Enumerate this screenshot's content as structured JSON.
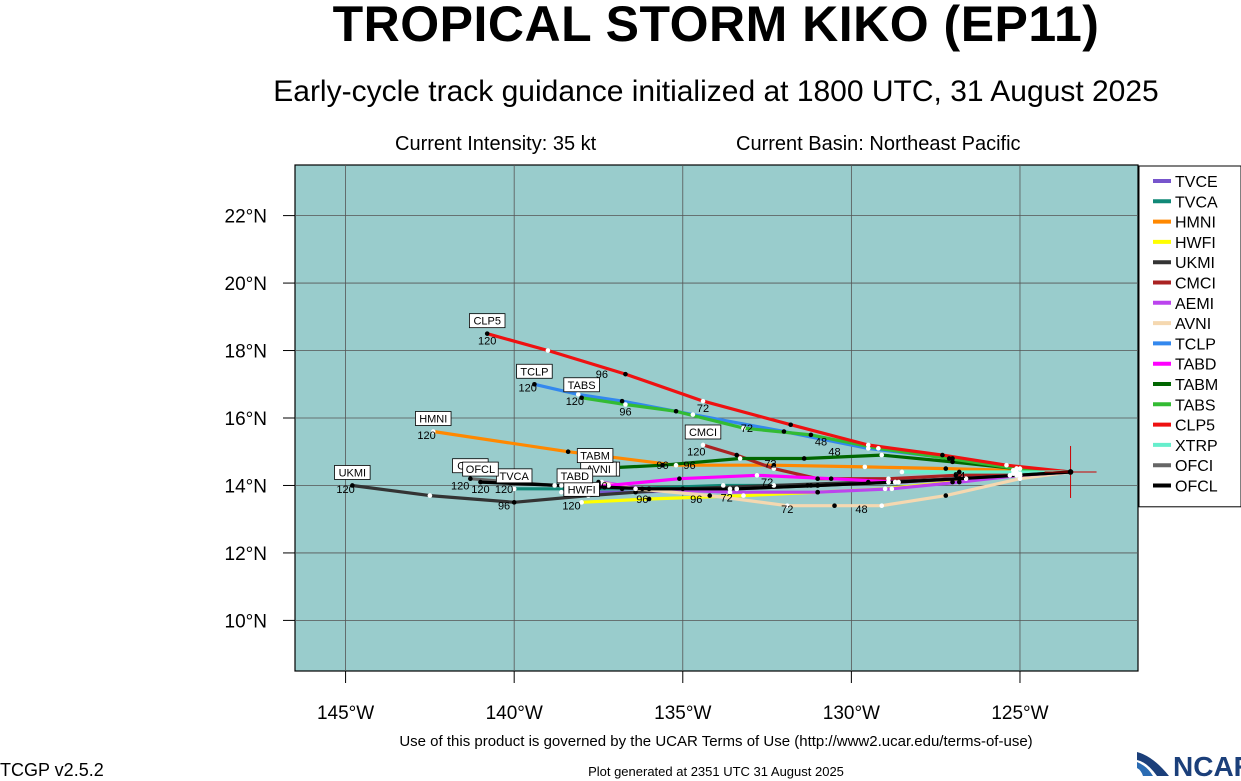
{
  "header": {
    "title": "TROPICAL STORM KIKO (EP11)",
    "subtitle": "Early-cycle track guidance initialized at 1800 UTC, 31 August 2025",
    "intensity": "Current Intensity: 35 kt",
    "basin": "Current Basin: Northeast Pacific"
  },
  "footer": {
    "terms": "Use of this product is governed by the UCAR Terms of Use (http://www2.ucar.edu/terms-of-use)",
    "generated": "Plot generated at 2351 UTC   31 August 2025",
    "version": "TCGP v2.5.2",
    "logo_text": "NCAR"
  },
  "colors": {
    "ocean": "#99cccc",
    "grid": "#555555"
  },
  "chart_data": {
    "type": "line",
    "map": "track map",
    "xlim": [
      -146.5,
      -121.5
    ],
    "ylim": [
      8.5,
      23.5
    ],
    "x_ticks": [
      -145,
      -140,
      -135,
      -130,
      -125
    ],
    "x_tick_labels": [
      "145°W",
      "140°W",
      "135°W",
      "130°W",
      "125°W"
    ],
    "y_ticks": [
      10,
      12,
      14,
      16,
      18,
      20,
      22
    ],
    "y_tick_labels": [
      "10°N",
      "12°N",
      "14°N",
      "16°N",
      "18°N",
      "20°N",
      "22°N"
    ],
    "current_position": {
      "lon": -123.5,
      "lat": 14.4
    },
    "legend_position": "right",
    "series": [
      {
        "name": "TVCE",
        "color": "#7755cc",
        "label": "",
        "lon": [
          -123.5,
          -125,
          -126.8,
          -128.9,
          -131.2,
          -133.6,
          -136.4,
          -138.6
        ],
        "lat": [
          14.4,
          14.35,
          14.2,
          14.1,
          14.0,
          13.9,
          13.8,
          13.8
        ],
        "hour_labels": []
      },
      {
        "name": "TVCA",
        "color": "#118877",
        "label": "TVCA",
        "lon": [
          -123.5,
          -125,
          -126.8,
          -128.9,
          -131.3,
          -133.8,
          -136.8,
          -140.0
        ],
        "lat": [
          14.4,
          14.3,
          14.2,
          14.1,
          14.0,
          14.0,
          13.9,
          13.9
        ],
        "hour_labels": [
          {
            "text": "120",
            "lon": -140.3,
            "lat": 13.9
          }
        ]
      },
      {
        "name": "HMNI",
        "color": "#ff8800",
        "label": "HMNI",
        "lon": [
          -123.5,
          -125.2,
          -127.2,
          -129.6,
          -132.3,
          -135.2,
          -138.4,
          -142.4
        ],
        "lat": [
          14.4,
          14.45,
          14.5,
          14.55,
          14.6,
          14.6,
          15.0,
          15.6
        ],
        "hour_labels": [
          {
            "text": "96",
            "lon": -134.8,
            "lat": 14.6
          },
          {
            "text": "120",
            "lon": -142.6,
            "lat": 15.5
          }
        ]
      },
      {
        "name": "HWFI",
        "color": "#ffff00",
        "label": "HWFI",
        "lon": [
          -123.5,
          -125.3,
          -127.0,
          -129.0,
          -131.0,
          -133.2,
          -136.0,
          -138.0
        ],
        "lat": [
          14.4,
          14.3,
          14.1,
          13.9,
          13.8,
          13.7,
          13.6,
          13.5
        ],
        "hour_labels": [
          {
            "text": "72",
            "lon": -133.7,
            "lat": 13.65
          },
          {
            "text": "96",
            "lon": -136.2,
            "lat": 13.6
          },
          {
            "text": "120",
            "lon": -138.3,
            "lat": 13.4
          }
        ]
      },
      {
        "name": "UKMI",
        "color": "#333333",
        "label": "UKMI",
        "lon": [
          -123.5,
          -126.6,
          -129.5,
          -132.3,
          -135.0,
          -137.8,
          -140.0,
          -142.5,
          -144.8
        ],
        "lat": [
          14.4,
          14.2,
          14.1,
          14.0,
          13.9,
          13.7,
          13.5,
          13.7,
          14.0
        ],
        "hour_labels": [
          {
            "text": "96",
            "lon": -140.3,
            "lat": 13.4
          },
          {
            "text": "120",
            "lon": -145.0,
            "lat": 13.9
          }
        ]
      },
      {
        "name": "CMCI",
        "color": "#aa2222",
        "label": "CMCI",
        "lon": [
          -123.5,
          -125.2,
          -126.9,
          -128.9,
          -131.0,
          -132.3,
          -133.4,
          -134.4
        ],
        "lat": [
          14.4,
          14.35,
          14.3,
          14.2,
          14.2,
          14.5,
          14.9,
          15.2
        ],
        "hour_labels": [
          {
            "text": "72",
            "lon": -132.4,
            "lat": 14.65
          },
          {
            "text": "120",
            "lon": -134.6,
            "lat": 15.0
          }
        ]
      },
      {
        "name": "AEMI",
        "color": "#bb44ee",
        "label": "AEMI",
        "lon": [
          -123.5,
          -125.0,
          -126.8,
          -128.8,
          -131.0,
          -133.6,
          -136.2,
          -137.4
        ],
        "lat": [
          14.4,
          14.3,
          14.1,
          13.9,
          13.8,
          13.8,
          13.9,
          14.1
        ],
        "hour_labels": []
      },
      {
        "name": "AVNI",
        "color": "#f5d8b0",
        "label": "AVNI",
        "lon": [
          -123.5,
          -125.0,
          -127.2,
          -129.1,
          -130.5,
          -131.9,
          -134.2,
          -136.4,
          -137.5
        ],
        "lat": [
          14.4,
          14.2,
          13.7,
          13.4,
          13.4,
          13.4,
          13.7,
          13.9,
          14.1
        ],
        "hour_labels": [
          {
            "text": "48",
            "lon": -129.7,
            "lat": 13.3
          },
          {
            "text": "72",
            "lon": -131.9,
            "lat": 13.3
          },
          {
            "text": "96",
            "lon": -134.6,
            "lat": 13.6
          },
          {
            "text": "120",
            "lon": -137.5,
            "lat": 14.0
          }
        ]
      },
      {
        "name": "TCLP",
        "color": "#3388ee",
        "label": "TCLP",
        "lon": [
          -123.5,
          -125.0,
          -127.0,
          -129.5,
          -132.0,
          -134.7,
          -136.8,
          -138.1,
          -139.4
        ],
        "lat": [
          14.4,
          14.5,
          14.8,
          15.1,
          15.6,
          16.1,
          16.5,
          16.7,
          17.0
        ],
        "hour_labels": [
          {
            "text": "48",
            "lon": -130.5,
            "lat": 15.0
          },
          {
            "text": "96",
            "lon": -136.7,
            "lat": 16.2
          },
          {
            "text": "120",
            "lon": -139.6,
            "lat": 16.9
          }
        ]
      },
      {
        "name": "TABD",
        "color": "#ff00ff",
        "label": "TABD",
        "lon": [
          -123.5,
          -125.0,
          -126.8,
          -128.6,
          -130.6,
          -132.8,
          -135.1,
          -137.2,
          -138.2
        ],
        "lat": [
          14.4,
          14.3,
          14.2,
          14.1,
          14.2,
          14.3,
          14.2,
          14.0,
          13.9
        ],
        "hour_labels": [
          {
            "text": "24",
            "lon": -126.8,
            "lat": 14.3
          },
          {
            "text": "72",
            "lon": -132.5,
            "lat": 14.1
          }
        ]
      },
      {
        "name": "TABM",
        "color": "#006600",
        "label": "TABM",
        "lon": [
          -123.5,
          -125.1,
          -127.0,
          -129.1,
          -131.4,
          -133.3,
          -135.6,
          -137.6
        ],
        "lat": [
          14.4,
          14.5,
          14.7,
          14.9,
          14.8,
          14.8,
          14.6,
          14.5
        ],
        "hour_labels": [
          {
            "text": "96",
            "lon": -135.6,
            "lat": 14.6
          },
          {
            "text": "120",
            "lon": -138.0,
            "lat": 14.3
          }
        ]
      },
      {
        "name": "TABS",
        "color": "#33bb33",
        "label": "TABS",
        "lon": [
          -123.5,
          -125.1,
          -127.1,
          -129.2,
          -131.2,
          -133.2,
          -135.2,
          -136.7,
          -138.0
        ],
        "lat": [
          14.4,
          14.5,
          14.8,
          15.1,
          15.5,
          15.7,
          16.2,
          16.4,
          16.6
        ],
        "hour_labels": [
          {
            "text": "48",
            "lon": -130.9,
            "lat": 15.3
          },
          {
            "text": "72",
            "lon": -133.1,
            "lat": 15.7
          },
          {
            "text": "120",
            "lon": -138.2,
            "lat": 16.5
          }
        ]
      },
      {
        "name": "CLP5",
        "color": "#ee1111",
        "label": "CLP5",
        "lon": [
          -123.5,
          -125.4,
          -127.3,
          -129.5,
          -131.8,
          -134.4,
          -136.7,
          -139.0,
          -140.8
        ],
        "lat": [
          14.4,
          14.6,
          14.9,
          15.2,
          15.8,
          16.5,
          17.3,
          18.0,
          18.5
        ],
        "hour_labels": [
          {
            "text": "72",
            "lon": -134.4,
            "lat": 16.3
          },
          {
            "text": "96",
            "lon": -137.4,
            "lat": 17.3
          },
          {
            "text": "120",
            "lon": -140.8,
            "lat": 18.3
          }
        ]
      },
      {
        "name": "XTRP",
        "color": "#66eecc",
        "label": "",
        "lon": [
          -123.5,
          -125.1,
          -126.8,
          -128.5
        ],
        "lat": [
          14.4,
          14.4,
          14.4,
          14.4
        ],
        "hour_labels": []
      },
      {
        "name": "OFCI",
        "color": "#666666",
        "label": "OFCI",
        "lon": [
          -123.5,
          -125.1,
          -126.8,
          -128.7,
          -131.0,
          -133.4,
          -136.0,
          -138.8,
          -141.3
        ],
        "lat": [
          14.4,
          14.3,
          14.2,
          14.1,
          14.0,
          13.9,
          13.9,
          14.0,
          14.2
        ],
        "hour_labels": [
          {
            "text": "120",
            "lon": -141.6,
            "lat": 14.0
          }
        ]
      },
      {
        "name": "OFCL",
        "color": "#000000",
        "label": "OFCL",
        "lon": [
          -123.5,
          -125.1,
          -126.8,
          -128.7,
          -131.0,
          -133.4,
          -136.0,
          -138.6,
          -141.0
        ],
        "lat": [
          14.4,
          14.3,
          14.2,
          14.1,
          14.0,
          13.9,
          13.9,
          14.0,
          14.1
        ],
        "hour_labels": [
          {
            "text": "120",
            "lon": -141.0,
            "lat": 13.9
          }
        ]
      }
    ]
  }
}
